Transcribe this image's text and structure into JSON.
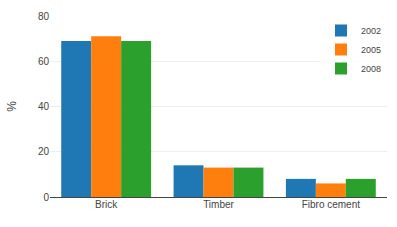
{
  "chart_data": {
    "type": "bar",
    "categories": [
      "Brick",
      "Timber",
      "Fibro cement"
    ],
    "series": [
      {
        "name": "2002",
        "values": [
          69,
          14,
          8
        ]
      },
      {
        "name": "2005",
        "values": [
          71,
          13,
          6
        ]
      },
      {
        "name": "2008",
        "values": [
          69,
          13,
          8
        ]
      }
    ],
    "ylabel": "%",
    "ylim": [
      0,
      80
    ],
    "yticks": [
      0,
      20,
      40,
      60,
      80
    ],
    "grid": true,
    "legend": "upper right"
  }
}
